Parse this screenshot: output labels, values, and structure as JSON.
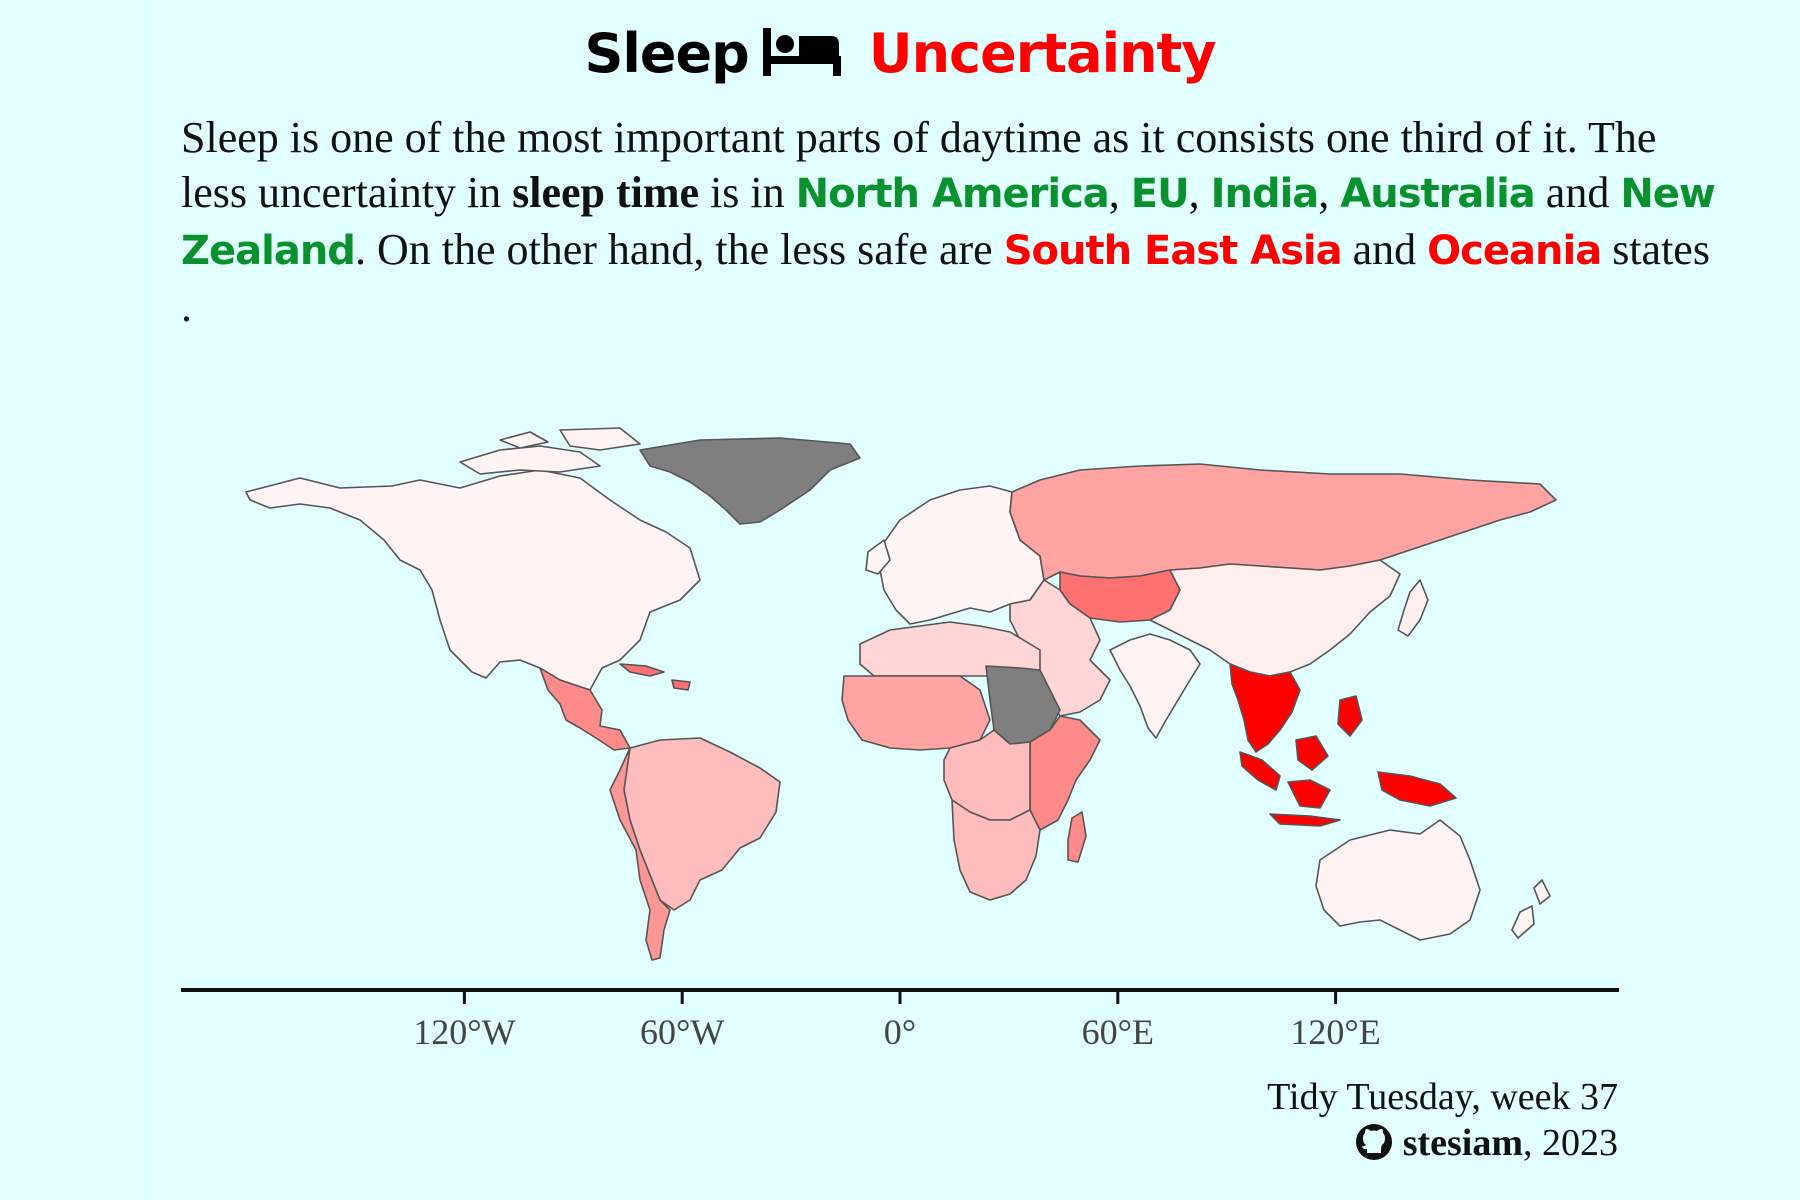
{
  "title": {
    "part1": "Sleep",
    "part2": "Uncertainty",
    "icon": "bed-icon",
    "color_part1": "#000000",
    "color_part2": "#ff0000"
  },
  "subtitle": {
    "s1": "Sleep is one of the most important parts of daytime as it consists one third of it. The less uncertainty in ",
    "s2": "sleep time",
    "s3": " is in ",
    "r1": "North America",
    "c1": ", ",
    "r2": "EU",
    "c2": ", ",
    "r3": "India",
    "c3": ", ",
    "r4": "Australia",
    "and1": " and ",
    "r5": "New Zealand",
    "s4": ". On the other hand, the less safe are ",
    "r6": "South East Asia",
    "and2": " and ",
    "r7": "Oceania",
    "s5": " states",
    "dot": "."
  },
  "map": {
    "x_ticks": [
      "120°W",
      "60°W",
      "0°",
      "60°E",
      "120°E"
    ],
    "x_tick_values": [
      -120,
      -60,
      0,
      60,
      120
    ],
    "projection": "equirectangular",
    "background": "#e1ffff",
    "ocean": "#e1ffff",
    "border_color": "#555555",
    "missing_color": "#7f7f7f",
    "low_color": "#fffafa",
    "high_color": "#ff0000",
    "regions": [
      {
        "id": "north-america",
        "level": 0.03
      },
      {
        "id": "central-america",
        "level": 0.45
      },
      {
        "id": "caribbean",
        "level": 0.55
      },
      {
        "id": "south-america",
        "level": 0.25
      },
      {
        "id": "south-america-west",
        "level": 0.4
      },
      {
        "id": "greenland",
        "level": null
      },
      {
        "id": "europe",
        "level": 0.02
      },
      {
        "id": "russia",
        "level": 0.35
      },
      {
        "id": "central-asia",
        "level": 0.55
      },
      {
        "id": "middle-east",
        "level": 0.15
      },
      {
        "id": "china-east-asia",
        "level": 0.05
      },
      {
        "id": "india",
        "level": 0.03
      },
      {
        "id": "south-east-asia",
        "level": 1.0
      },
      {
        "id": "indonesia",
        "level": 1.0
      },
      {
        "id": "australia",
        "level": 0.03
      },
      {
        "id": "new-zealand",
        "level": 0.03
      },
      {
        "id": "north-africa",
        "level": 0.15
      },
      {
        "id": "west-africa",
        "level": 0.35
      },
      {
        "id": "sudan",
        "level": null
      },
      {
        "id": "east-africa",
        "level": 0.45
      },
      {
        "id": "central-africa",
        "level": 0.25
      },
      {
        "id": "southern-africa",
        "level": 0.25
      },
      {
        "id": "madagascar",
        "level": 0.45
      }
    ]
  },
  "caption": {
    "line1": "Tidy Tuesday, week 37",
    "author": "stesiam",
    "year": ", 2023",
    "icon": "github-icon"
  }
}
